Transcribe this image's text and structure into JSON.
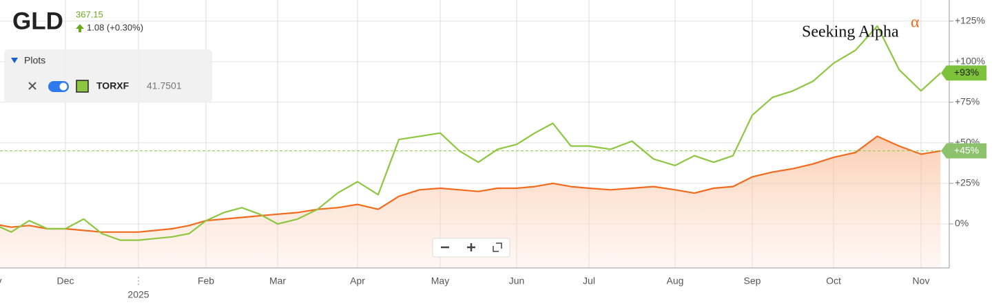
{
  "header": {
    "price": "367.15",
    "change": "1.08 (+0.30%)"
  },
  "legend_panel": {
    "title": "Plots",
    "value": "41.7501"
  },
  "brand": {
    "name": "Seeking Alpha",
    "mark": "α"
  },
  "chart_data": {
    "type": "line",
    "categories": [
      "Nov",
      null,
      null,
      null,
      "Dec",
      null,
      null,
      null,
      "2025",
      null,
      null,
      null,
      "Feb",
      null,
      null,
      null,
      "Mar",
      null,
      null,
      null,
      "Apr",
      null,
      null,
      null,
      "May",
      null,
      null,
      null,
      "Jun",
      null,
      null,
      null,
      "Jul",
      null,
      null,
      null,
      "Aug",
      null,
      null,
      null,
      "Sep",
      null,
      null,
      null,
      "Oct",
      null,
      null,
      null,
      "Nov",
      null
    ],
    "series": [
      {
        "name": "GLD",
        "color": "#f26b1d",
        "area": true,
        "values": [
          0,
          -2,
          -1,
          -3,
          -3,
          -4,
          -5,
          -5,
          -5,
          -4,
          -3,
          -1,
          2,
          3,
          4,
          5,
          6,
          7,
          9,
          10,
          12,
          9,
          17,
          21,
          22,
          21,
          20,
          22,
          22,
          23,
          25,
          23,
          22,
          21,
          22,
          23,
          21,
          19,
          22,
          23,
          29,
          32,
          34,
          37,
          41,
          44,
          54,
          48,
          43,
          45
        ],
        "value_labels": [
          null,
          null,
          null,
          null,
          null,
          null,
          null,
          null,
          null,
          null,
          null,
          null,
          null,
          null,
          null,
          null,
          null,
          null,
          null,
          null,
          null,
          null,
          null,
          null,
          null,
          null,
          null,
          null,
          null,
          null,
          null,
          null,
          null,
          null,
          null,
          null,
          null,
          null,
          null,
          null,
          null,
          null,
          null,
          null,
          null,
          null,
          null,
          null,
          null,
          "+45%"
        ]
      },
      {
        "name": "TORXF",
        "color": "#8dc63f",
        "area": false,
        "values": [
          0,
          -5,
          2,
          -3,
          -3,
          3,
          -6,
          -10,
          -10,
          -9,
          -8,
          -6,
          2,
          7,
          10,
          6,
          0,
          3,
          9,
          19,
          26,
          18,
          52,
          54,
          56,
          45,
          38,
          46,
          49,
          56,
          62,
          48,
          48,
          46,
          51,
          40,
          36,
          42,
          38,
          42,
          67,
          78,
          82,
          88,
          99,
          107,
          122,
          95,
          82,
          93
        ],
        "value_labels": [
          null,
          null,
          null,
          null,
          null,
          null,
          null,
          null,
          null,
          null,
          null,
          null,
          null,
          null,
          null,
          null,
          null,
          null,
          null,
          null,
          null,
          null,
          null,
          null,
          null,
          null,
          null,
          null,
          null,
          null,
          null,
          null,
          null,
          null,
          null,
          null,
          null,
          null,
          null,
          null,
          null,
          null,
          null,
          null,
          null,
          null,
          null,
          null,
          null,
          "+93%"
        ]
      }
    ],
    "ylim": [
      -25,
      138
    ],
    "yticks": [
      {
        "value": 0,
        "label": "0%"
      },
      {
        "value": 25,
        "label": "+25%"
      },
      {
        "value": 50,
        "label": "+50%"
      },
      {
        "value": 75,
        "label": "+75%"
      },
      {
        "value": 100,
        "label": "+100%"
      },
      {
        "value": 125,
        "label": "+125%"
      }
    ],
    "grid": true
  }
}
